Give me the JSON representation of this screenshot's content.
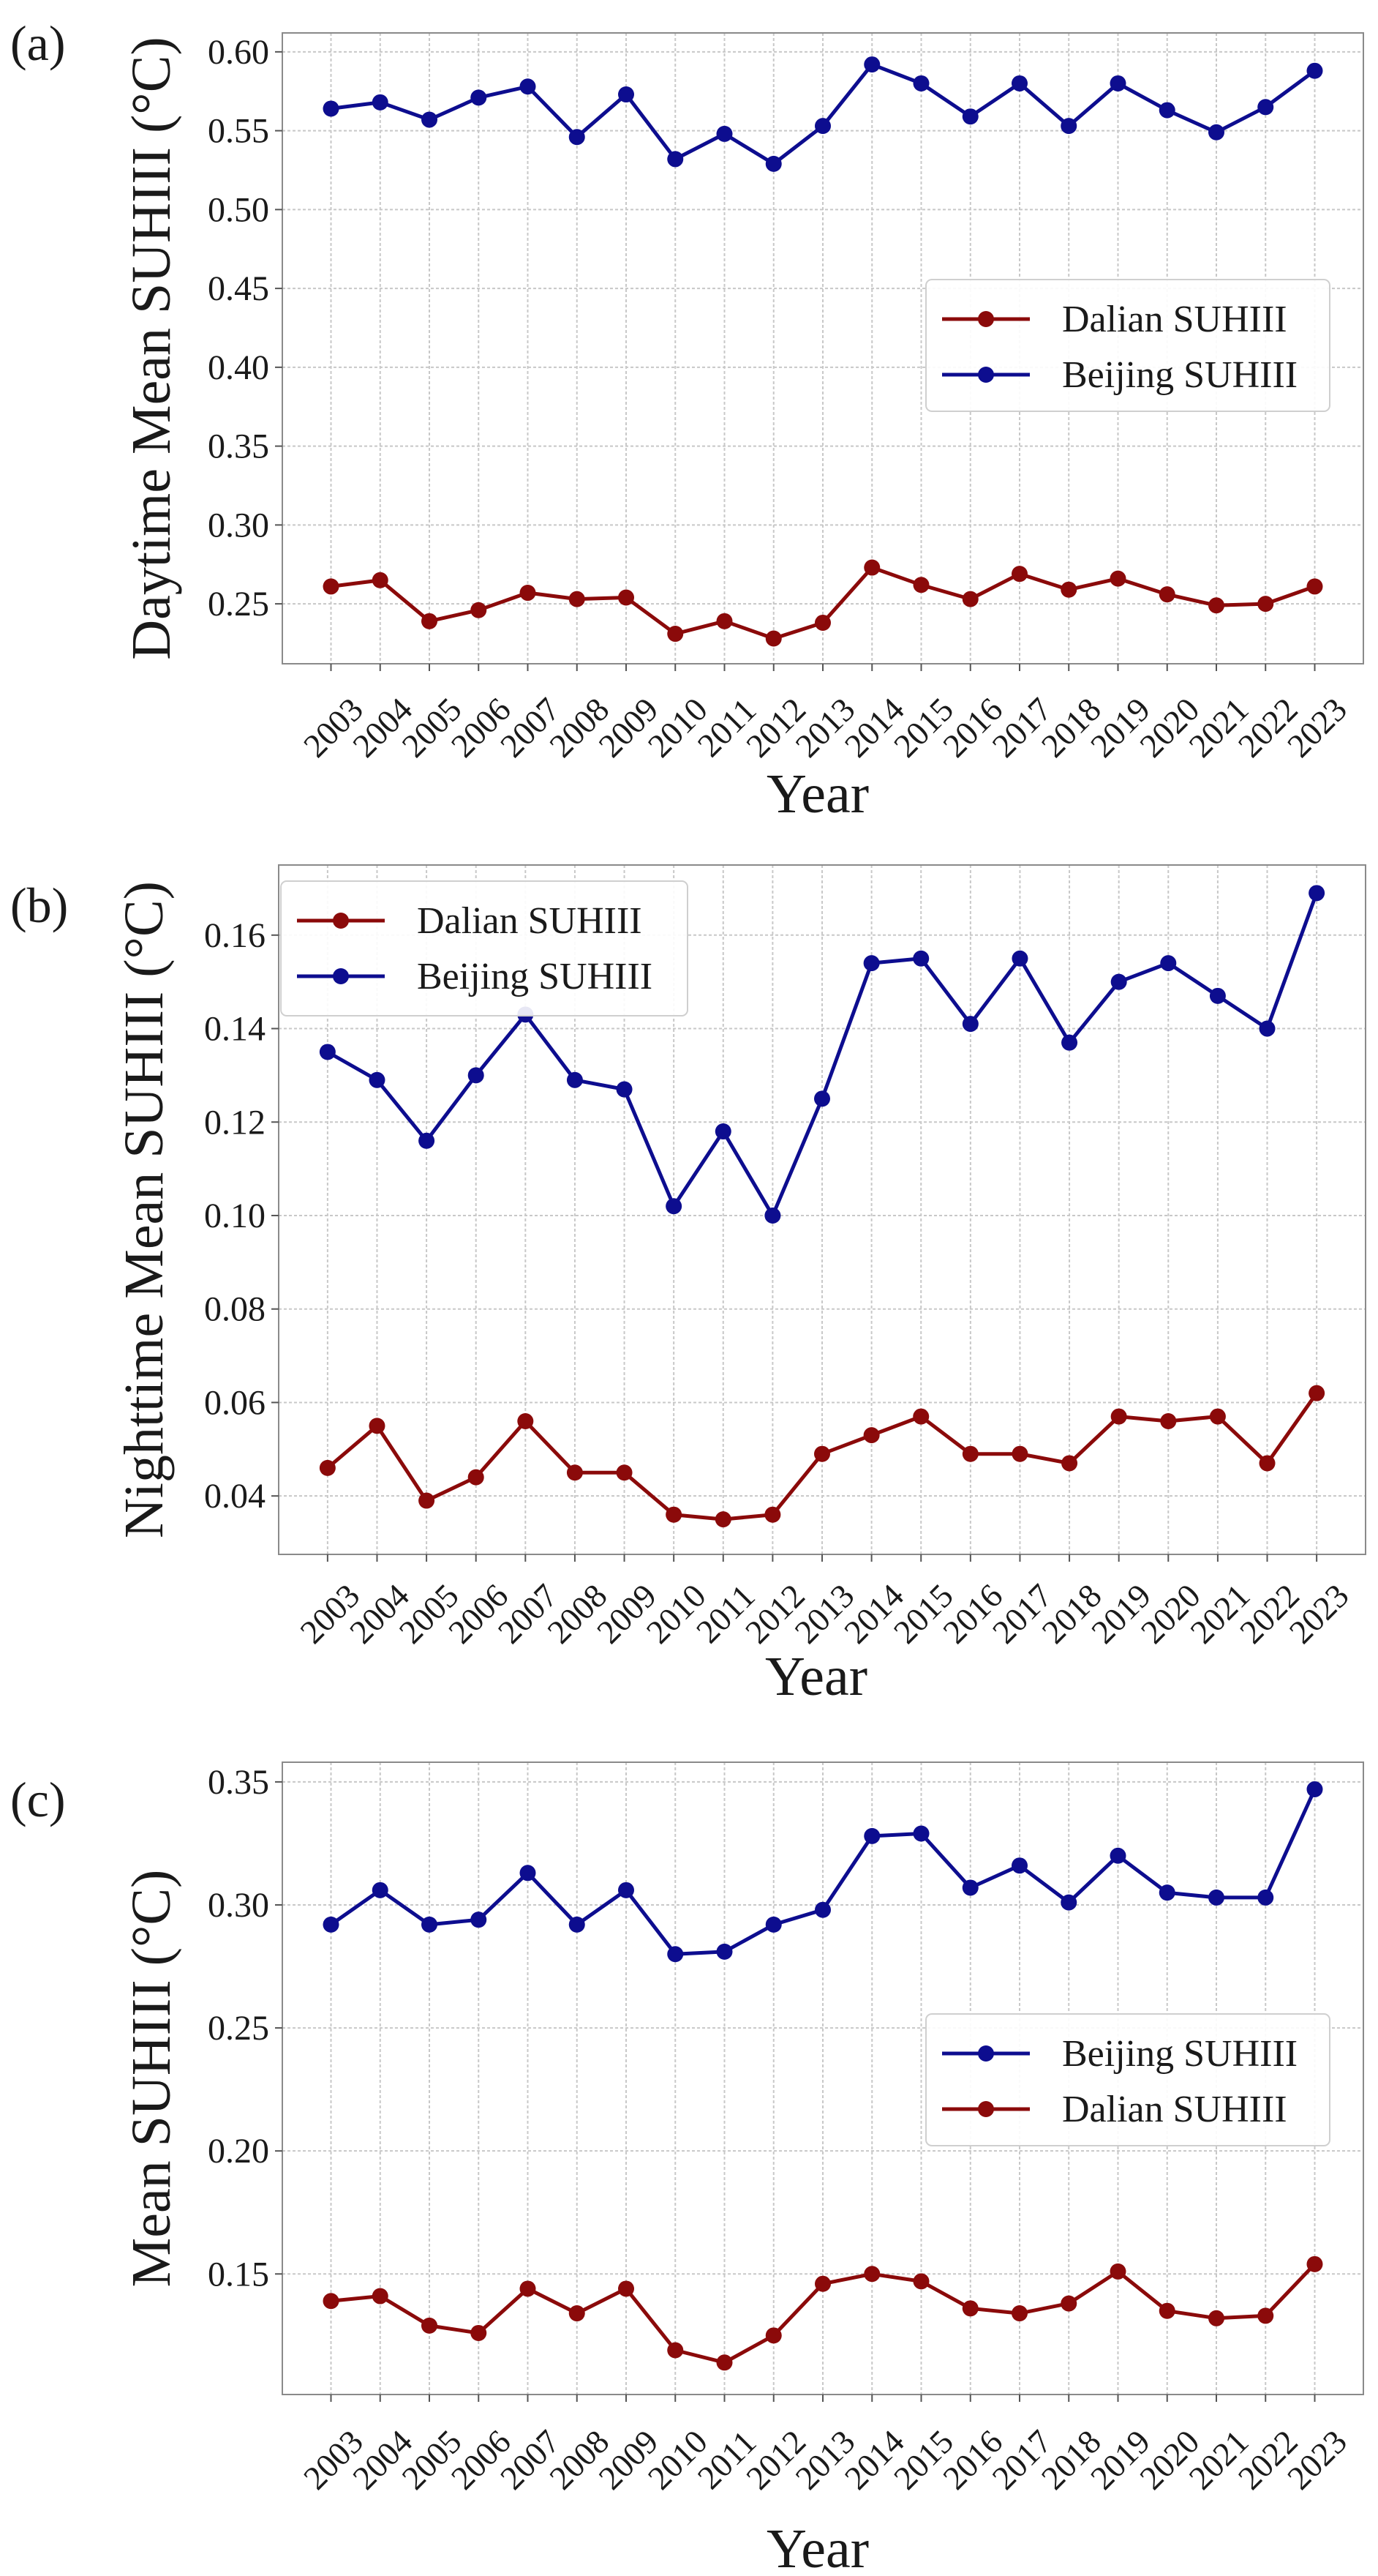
{
  "colors": {
    "beijing": "#0d0d8f",
    "dalian": "#8b0a0a"
  },
  "chart_data": [
    {
      "type": "line",
      "panel_label": "(a)",
      "title": "",
      "xlabel": "Year",
      "ylabel": "Daytime Mean SUHIII (°C)",
      "ylim": [
        0.212,
        0.612
      ],
      "yticks": [
        0.25,
        0.3,
        0.35,
        0.4,
        0.45,
        0.5,
        0.55,
        0.6
      ],
      "ytick_labels": [
        "0.25",
        "0.30",
        "0.35",
        "0.40",
        "0.45",
        "0.50",
        "0.55",
        "0.60"
      ],
      "grid": true,
      "legend_position": "center-right",
      "legend_order": [
        "Dalian SUHIII",
        "Beijing SUHIII"
      ],
      "x": [
        "2003",
        "2004",
        "2005",
        "2006",
        "2007",
        "2008",
        "2009",
        "2010",
        "2011",
        "2012",
        "2013",
        "2014",
        "2015",
        "2016",
        "2017",
        "2018",
        "2019",
        "2020",
        "2021",
        "2022",
        "2023"
      ],
      "series": [
        {
          "name": "Dalian SUHIII",
          "color_key": "dalian",
          "values": [
            0.261,
            0.265,
            0.239,
            0.246,
            0.257,
            0.253,
            0.254,
            0.231,
            0.239,
            0.228,
            0.238,
            0.273,
            0.262,
            0.253,
            0.269,
            0.259,
            0.266,
            0.256,
            0.249,
            0.25,
            0.261
          ]
        },
        {
          "name": "Beijing SUHIII",
          "color_key": "beijing",
          "values": [
            0.564,
            0.568,
            0.557,
            0.571,
            0.578,
            0.546,
            0.573,
            0.532,
            0.548,
            0.529,
            0.553,
            0.592,
            0.58,
            0.559,
            0.58,
            0.553,
            0.58,
            0.563,
            0.549,
            0.565,
            0.588
          ]
        }
      ]
    },
    {
      "type": "line",
      "panel_label": "(b)",
      "title": "",
      "xlabel": "Year",
      "ylabel": "Nighttime Mean SUHIII (°C)",
      "ylim": [
        0.0275,
        0.175
      ],
      "yticks": [
        0.04,
        0.06,
        0.08,
        0.1,
        0.12,
        0.14,
        0.16
      ],
      "ytick_labels": [
        "0.04",
        "0.06",
        "0.08",
        "0.10",
        "0.12",
        "0.14",
        "0.16"
      ],
      "grid": true,
      "legend_position": "top-left",
      "legend_order": [
        "Dalian SUHIII",
        "Beijing SUHIII"
      ],
      "x": [
        "2003",
        "2004",
        "2005",
        "2006",
        "2007",
        "2008",
        "2009",
        "2010",
        "2011",
        "2012",
        "2013",
        "2014",
        "2015",
        "2016",
        "2017",
        "2018",
        "2019",
        "2020",
        "2021",
        "2022",
        "2023"
      ],
      "series": [
        {
          "name": "Dalian SUHIII",
          "color_key": "dalian",
          "values": [
            0.046,
            0.055,
            0.039,
            0.044,
            0.056,
            0.045,
            0.045,
            0.036,
            0.035,
            0.036,
            0.049,
            0.053,
            0.057,
            0.049,
            0.049,
            0.047,
            0.057,
            0.056,
            0.057,
            0.047,
            0.062
          ]
        },
        {
          "name": "Beijing SUHIII",
          "color_key": "beijing",
          "values": [
            0.135,
            0.129,
            0.116,
            0.13,
            0.143,
            0.129,
            0.127,
            0.102,
            0.118,
            0.1,
            0.125,
            0.154,
            0.155,
            0.141,
            0.155,
            0.137,
            0.15,
            0.154,
            0.147,
            0.14,
            0.169
          ]
        }
      ]
    },
    {
      "type": "line",
      "panel_label": "(c)",
      "title": "",
      "xlabel": "Year",
      "ylabel": "Mean SUHIII (°C)",
      "ylim": [
        0.101,
        0.358
      ],
      "yticks": [
        0.15,
        0.2,
        0.25,
        0.3,
        0.35
      ],
      "ytick_labels": [
        "0.15",
        "0.20",
        "0.25",
        "0.30",
        "0.35"
      ],
      "grid": true,
      "legend_position": "center-right",
      "legend_order": [
        "Beijing SUHIII",
        "Dalian SUHIII"
      ],
      "x": [
        "2003",
        "2004",
        "2005",
        "2006",
        "2007",
        "2008",
        "2009",
        "2010",
        "2011",
        "2012",
        "2013",
        "2014",
        "2015",
        "2016",
        "2017",
        "2018",
        "2019",
        "2020",
        "2021",
        "2022",
        "2023"
      ],
      "series": [
        {
          "name": "Dalian SUHIII",
          "color_key": "dalian",
          "values": [
            0.139,
            0.141,
            0.129,
            0.126,
            0.144,
            0.134,
            0.144,
            0.119,
            0.114,
            0.125,
            0.146,
            0.15,
            0.147,
            0.136,
            0.134,
            0.138,
            0.151,
            0.135,
            0.132,
            0.133,
            0.154
          ]
        },
        {
          "name": "Beijing SUHIII",
          "color_key": "beijing",
          "values": [
            0.292,
            0.306,
            0.292,
            0.294,
            0.313,
            0.292,
            0.306,
            0.28,
            0.281,
            0.292,
            0.298,
            0.328,
            0.329,
            0.307,
            0.316,
            0.301,
            0.32,
            0.305,
            0.303,
            0.303,
            0.347
          ]
        }
      ]
    }
  ]
}
